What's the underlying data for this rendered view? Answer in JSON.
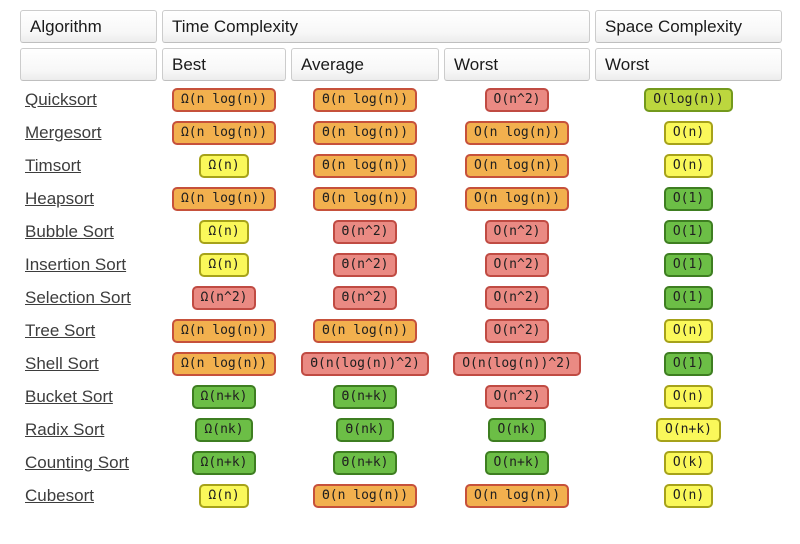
{
  "table": {
    "headers": {
      "algorithm": "Algorithm",
      "time": "Time Complexity",
      "space": "Space Complexity",
      "sub_best": "Best",
      "sub_average": "Average",
      "sub_worst": "Worst",
      "sub_space_worst": "Worst"
    },
    "levels": {
      "orange": {
        "bg": "#F2B04E",
        "border": "#C6513B"
      },
      "red": {
        "bg": "#EA8A83",
        "border": "#C04B43"
      },
      "yellow": {
        "bg": "#FAF85A",
        "border": "#A6A21A"
      },
      "green": {
        "bg": "#6CBE46",
        "border": "#3E7E21"
      },
      "yellowgreen": {
        "bg": "#BCD73E",
        "border": "#73991C"
      }
    },
    "rows": [
      {
        "name": "Quicksort",
        "best": {
          "text": "Ω(n log(n))",
          "level": "orange"
        },
        "average": {
          "text": "Θ(n log(n))",
          "level": "orange"
        },
        "worst": {
          "text": "O(n^2)",
          "level": "red"
        },
        "space": {
          "text": "O(log(n))",
          "level": "yellowgreen"
        }
      },
      {
        "name": "Mergesort",
        "best": {
          "text": "Ω(n log(n))",
          "level": "orange"
        },
        "average": {
          "text": "Θ(n log(n))",
          "level": "orange"
        },
        "worst": {
          "text": "O(n log(n))",
          "level": "orange"
        },
        "space": {
          "text": "O(n)",
          "level": "yellow"
        }
      },
      {
        "name": "Timsort",
        "best": {
          "text": "Ω(n)",
          "level": "yellow"
        },
        "average": {
          "text": "Θ(n log(n))",
          "level": "orange"
        },
        "worst": {
          "text": "O(n log(n))",
          "level": "orange"
        },
        "space": {
          "text": "O(n)",
          "level": "yellow"
        }
      },
      {
        "name": "Heapsort",
        "best": {
          "text": "Ω(n log(n))",
          "level": "orange"
        },
        "average": {
          "text": "Θ(n log(n))",
          "level": "orange"
        },
        "worst": {
          "text": "O(n log(n))",
          "level": "orange"
        },
        "space": {
          "text": "O(1)",
          "level": "green"
        }
      },
      {
        "name": "Bubble Sort",
        "best": {
          "text": "Ω(n)",
          "level": "yellow"
        },
        "average": {
          "text": "Θ(n^2)",
          "level": "red"
        },
        "worst": {
          "text": "O(n^2)",
          "level": "red"
        },
        "space": {
          "text": "O(1)",
          "level": "green"
        }
      },
      {
        "name": "Insertion Sort",
        "best": {
          "text": "Ω(n)",
          "level": "yellow"
        },
        "average": {
          "text": "Θ(n^2)",
          "level": "red"
        },
        "worst": {
          "text": "O(n^2)",
          "level": "red"
        },
        "space": {
          "text": "O(1)",
          "level": "green"
        }
      },
      {
        "name": "Selection Sort",
        "best": {
          "text": "Ω(n^2)",
          "level": "red"
        },
        "average": {
          "text": "Θ(n^2)",
          "level": "red"
        },
        "worst": {
          "text": "O(n^2)",
          "level": "red"
        },
        "space": {
          "text": "O(1)",
          "level": "green"
        }
      },
      {
        "name": "Tree Sort",
        "best": {
          "text": "Ω(n log(n))",
          "level": "orange"
        },
        "average": {
          "text": "Θ(n log(n))",
          "level": "orange"
        },
        "worst": {
          "text": "O(n^2)",
          "level": "red"
        },
        "space": {
          "text": "O(n)",
          "level": "yellow"
        }
      },
      {
        "name": "Shell Sort",
        "best": {
          "text": "Ω(n log(n))",
          "level": "orange"
        },
        "average": {
          "text": "Θ(n(log(n))^2)",
          "level": "red"
        },
        "worst": {
          "text": "O(n(log(n))^2)",
          "level": "red"
        },
        "space": {
          "text": "O(1)",
          "level": "green"
        }
      },
      {
        "name": "Bucket Sort",
        "best": {
          "text": "Ω(n+k)",
          "level": "green"
        },
        "average": {
          "text": "Θ(n+k)",
          "level": "green"
        },
        "worst": {
          "text": "O(n^2)",
          "level": "red"
        },
        "space": {
          "text": "O(n)",
          "level": "yellow"
        }
      },
      {
        "name": "Radix Sort",
        "best": {
          "text": "Ω(nk)",
          "level": "green"
        },
        "average": {
          "text": "Θ(nk)",
          "level": "green"
        },
        "worst": {
          "text": "O(nk)",
          "level": "green"
        },
        "space": {
          "text": "O(n+k)",
          "level": "yellow"
        }
      },
      {
        "name": "Counting Sort",
        "best": {
          "text": "Ω(n+k)",
          "level": "green"
        },
        "average": {
          "text": "Θ(n+k)",
          "level": "green"
        },
        "worst": {
          "text": "O(n+k)",
          "level": "green"
        },
        "space": {
          "text": "O(k)",
          "level": "yellow"
        }
      },
      {
        "name": "Cubesort",
        "best": {
          "text": "Ω(n)",
          "level": "yellow"
        },
        "average": {
          "text": "Θ(n log(n))",
          "level": "orange"
        },
        "worst": {
          "text": "O(n log(n))",
          "level": "orange"
        },
        "space": {
          "text": "O(n)",
          "level": "yellow"
        }
      }
    ]
  },
  "chart_data": {
    "type": "table",
    "columns": [
      "Algorithm",
      "Time Complexity (Best)",
      "Time Complexity (Average)",
      "Time Complexity (Worst)",
      "Space Complexity (Worst)"
    ],
    "rows": [
      [
        "Quicksort",
        "Ω(n log(n))",
        "Θ(n log(n))",
        "O(n^2)",
        "O(log(n))"
      ],
      [
        "Mergesort",
        "Ω(n log(n))",
        "Θ(n log(n))",
        "O(n log(n))",
        "O(n)"
      ],
      [
        "Timsort",
        "Ω(n)",
        "Θ(n log(n))",
        "O(n log(n))",
        "O(n)"
      ],
      [
        "Heapsort",
        "Ω(n log(n))",
        "Θ(n log(n))",
        "O(n log(n))",
        "O(1)"
      ],
      [
        "Bubble Sort",
        "Ω(n)",
        "Θ(n^2)",
        "O(n^2)",
        "O(1)"
      ],
      [
        "Insertion Sort",
        "Ω(n)",
        "Θ(n^2)",
        "O(n^2)",
        "O(1)"
      ],
      [
        "Selection Sort",
        "Ω(n^2)",
        "Θ(n^2)",
        "O(n^2)",
        "O(1)"
      ],
      [
        "Tree Sort",
        "Ω(n log(n))",
        "Θ(n log(n))",
        "O(n^2)",
        "O(n)"
      ],
      [
        "Shell Sort",
        "Ω(n log(n))",
        "Θ(n(log(n))^2)",
        "O(n(log(n))^2)",
        "O(1)"
      ],
      [
        "Bucket Sort",
        "Ω(n+k)",
        "Θ(n+k)",
        "O(n^2)",
        "O(n)"
      ],
      [
        "Radix Sort",
        "Ω(nk)",
        "Θ(nk)",
        "O(nk)",
        "O(n+k)"
      ],
      [
        "Counting Sort",
        "Ω(n+k)",
        "Θ(n+k)",
        "O(n+k)",
        "O(k)"
      ],
      [
        "Cubesort",
        "Ω(n)",
        "Θ(n log(n))",
        "O(n log(n))",
        "O(n)"
      ]
    ],
    "legend_colors": {
      "bad_orange": "#F2B04E",
      "horrible_red": "#EA8A83",
      "fair_yellow": "#FAF85A",
      "excellent_green": "#6CBE46",
      "good_yellowgreen": "#BCD73E"
    }
  }
}
